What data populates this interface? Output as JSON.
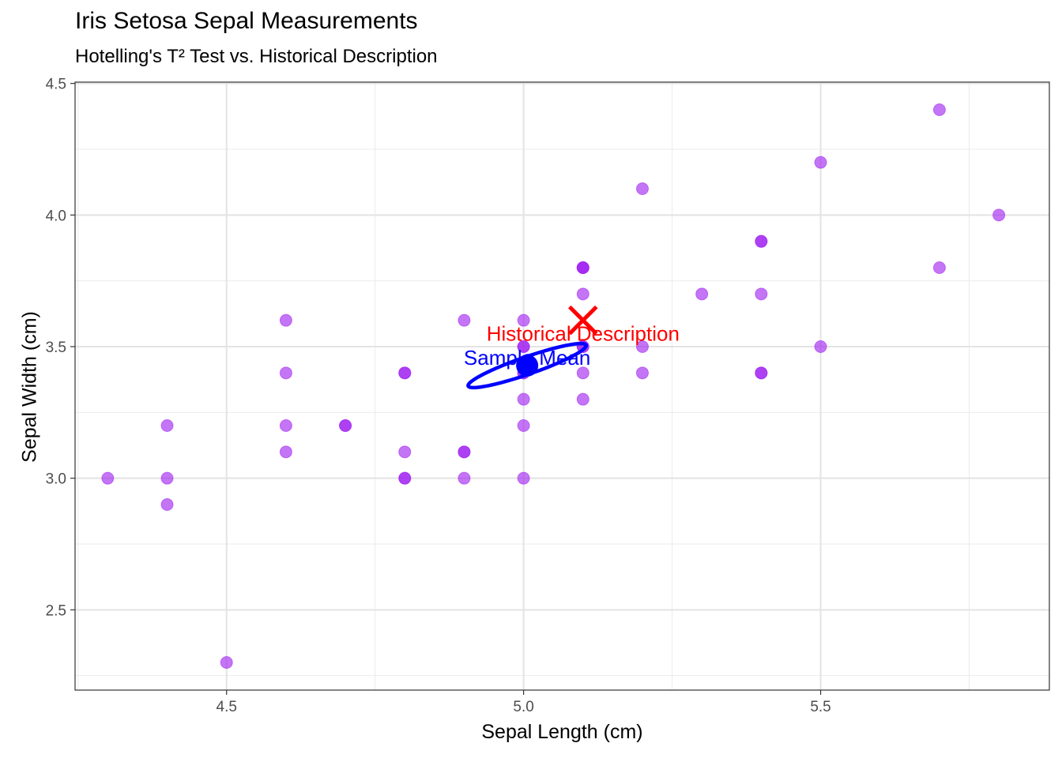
{
  "chart_data": {
    "type": "scatter",
    "title": "Iris Setosa Sepal Measurements",
    "subtitle": "Hotelling's T² Test vs. Historical Description",
    "xlabel": "Sepal Length (cm)",
    "ylabel": "Sepal Width (cm)",
    "xlim": [
      4.245,
      5.885
    ],
    "ylim": [
      2.195,
      4.505
    ],
    "x_ticks": [
      4.5,
      5.0,
      5.5
    ],
    "x_tick_labels": [
      "4.5",
      "5.0",
      "5.5"
    ],
    "y_ticks": [
      2.5,
      3.0,
      3.5,
      4.0,
      4.5
    ],
    "y_tick_labels": [
      "2.5",
      "3.0",
      "3.5",
      "4.0",
      "4.5"
    ],
    "x_minor_ticks": [
      4.25,
      4.75,
      5.25,
      5.75
    ],
    "y_minor_ticks": [
      2.25,
      2.75,
      3.25,
      3.75,
      4.25
    ],
    "grid": true,
    "point_color": "#a020f0",
    "points": [
      {
        "x": 5.1,
        "y": 3.5
      },
      {
        "x": 4.9,
        "y": 3.0
      },
      {
        "x": 4.7,
        "y": 3.2
      },
      {
        "x": 4.6,
        "y": 3.1
      },
      {
        "x": 5.0,
        "y": 3.6
      },
      {
        "x": 5.4,
        "y": 3.9
      },
      {
        "x": 4.6,
        "y": 3.4
      },
      {
        "x": 5.0,
        "y": 3.4
      },
      {
        "x": 4.4,
        "y": 2.9
      },
      {
        "x": 4.9,
        "y": 3.1
      },
      {
        "x": 5.4,
        "y": 3.7
      },
      {
        "x": 4.8,
        "y": 3.4
      },
      {
        "x": 4.8,
        "y": 3.0
      },
      {
        "x": 4.3,
        "y": 3.0
      },
      {
        "x": 5.8,
        "y": 4.0
      },
      {
        "x": 5.7,
        "y": 4.4
      },
      {
        "x": 5.4,
        "y": 3.9
      },
      {
        "x": 5.1,
        "y": 3.5
      },
      {
        "x": 5.7,
        "y": 3.8
      },
      {
        "x": 5.1,
        "y": 3.8
      },
      {
        "x": 5.4,
        "y": 3.4
      },
      {
        "x": 5.1,
        "y": 3.7
      },
      {
        "x": 4.6,
        "y": 3.6
      },
      {
        "x": 5.1,
        "y": 3.3
      },
      {
        "x": 4.8,
        "y": 3.4
      },
      {
        "x": 5.0,
        "y": 3.0
      },
      {
        "x": 5.0,
        "y": 3.4
      },
      {
        "x": 5.2,
        "y": 3.5
      },
      {
        "x": 5.2,
        "y": 3.4
      },
      {
        "x": 4.7,
        "y": 3.2
      },
      {
        "x": 4.8,
        "y": 3.1
      },
      {
        "x": 5.4,
        "y": 3.4
      },
      {
        "x": 5.2,
        "y": 4.1
      },
      {
        "x": 5.5,
        "y": 4.2
      },
      {
        "x": 4.9,
        "y": 3.1
      },
      {
        "x": 5.0,
        "y": 3.2
      },
      {
        "x": 5.5,
        "y": 3.5
      },
      {
        "x": 4.9,
        "y": 3.6
      },
      {
        "x": 4.4,
        "y": 3.0
      },
      {
        "x": 5.1,
        "y": 3.4
      },
      {
        "x": 5.0,
        "y": 3.5
      },
      {
        "x": 4.5,
        "y": 2.3
      },
      {
        "x": 4.4,
        "y": 3.2
      },
      {
        "x": 5.0,
        "y": 3.5
      },
      {
        "x": 5.1,
        "y": 3.8
      },
      {
        "x": 4.8,
        "y": 3.0
      },
      {
        "x": 5.1,
        "y": 3.8
      },
      {
        "x": 4.6,
        "y": 3.2
      },
      {
        "x": 5.3,
        "y": 3.7
      },
      {
        "x": 5.0,
        "y": 3.3
      }
    ],
    "sample_mean": {
      "x": 5.006,
      "y": 3.428,
      "label": "Sample Mean",
      "color": "#0000ff"
    },
    "confidence_ellipse": {
      "center": [
        5.006,
        3.428
      ],
      "semi_major": 0.127,
      "semi_minor": 0.0274,
      "angle_deg": 39.6,
      "color": "#0000ff"
    },
    "historical": {
      "x": 5.1,
      "y": 3.6,
      "label": "Historical Description",
      "color": "#ff0000",
      "marker": "cross"
    }
  }
}
